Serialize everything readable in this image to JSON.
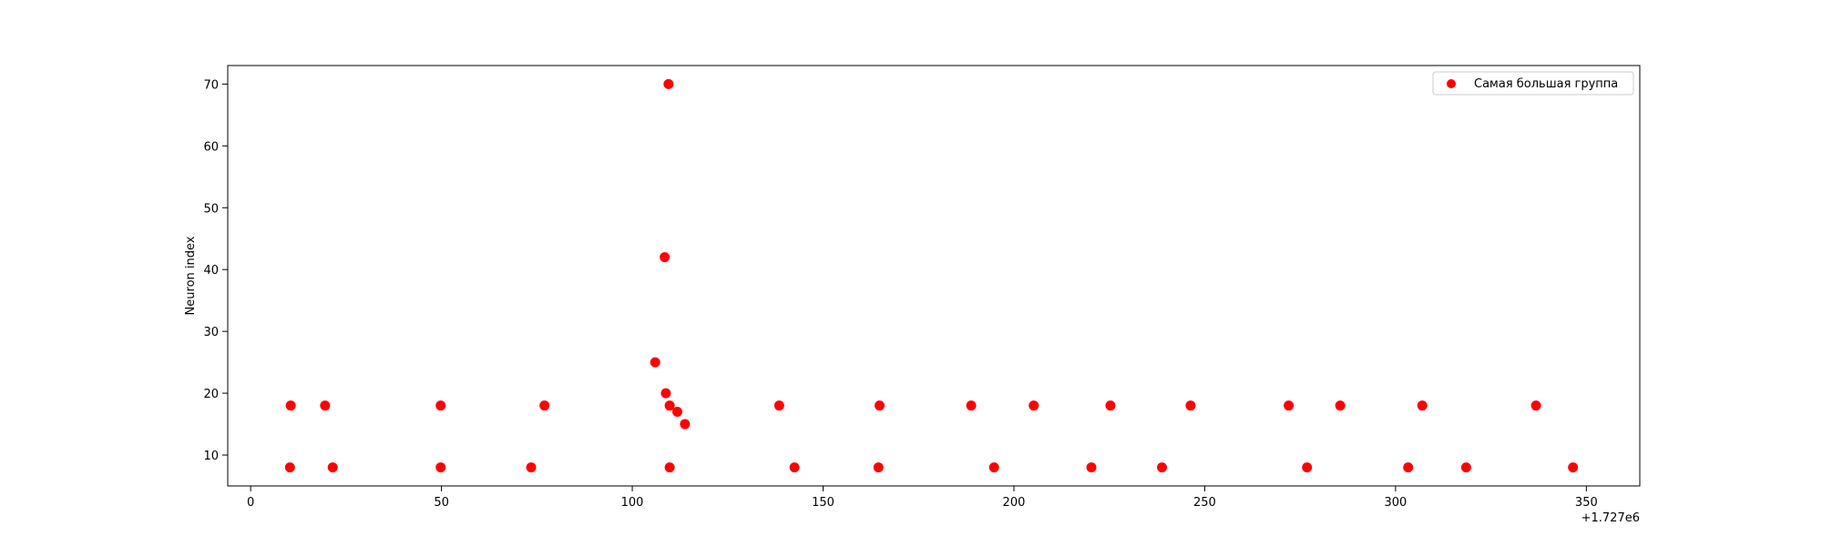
{
  "chart_data": {
    "type": "scatter",
    "title": "",
    "xlabel": "",
    "ylabel": "Neuron index",
    "x_offset_label": "+1.727e6",
    "xlim": [
      -6,
      364
    ],
    "ylim": [
      5,
      73
    ],
    "xticks": [
      0,
      50,
      100,
      150,
      200,
      250,
      300,
      350
    ],
    "yticks": [
      10,
      20,
      30,
      40,
      50,
      60,
      70
    ],
    "grid": false,
    "legend_position": "top-right",
    "series": [
      {
        "name": "Самая большая группа",
        "color": "#ff0000",
        "points": [
          {
            "x": 10.5,
            "y": 18
          },
          {
            "x": 10.3,
            "y": 8
          },
          {
            "x": 19.5,
            "y": 18
          },
          {
            "x": 21.5,
            "y": 8
          },
          {
            "x": 49.8,
            "y": 18
          },
          {
            "x": 49.8,
            "y": 8
          },
          {
            "x": 73.5,
            "y": 8
          },
          {
            "x": 77.0,
            "y": 18
          },
          {
            "x": 106.0,
            "y": 25
          },
          {
            "x": 108.5,
            "y": 42
          },
          {
            "x": 108.8,
            "y": 20
          },
          {
            "x": 109.5,
            "y": 70
          },
          {
            "x": 109.8,
            "y": 18
          },
          {
            "x": 109.8,
            "y": 8
          },
          {
            "x": 111.8,
            "y": 17
          },
          {
            "x": 113.8,
            "y": 15
          },
          {
            "x": 138.5,
            "y": 18
          },
          {
            "x": 142.5,
            "y": 8
          },
          {
            "x": 164.8,
            "y": 18
          },
          {
            "x": 164.5,
            "y": 8
          },
          {
            "x": 188.8,
            "y": 18
          },
          {
            "x": 194.8,
            "y": 8
          },
          {
            "x": 205.2,
            "y": 18
          },
          {
            "x": 220.3,
            "y": 8
          },
          {
            "x": 225.3,
            "y": 18
          },
          {
            "x": 238.8,
            "y": 8
          },
          {
            "x": 246.3,
            "y": 18
          },
          {
            "x": 272.0,
            "y": 18
          },
          {
            "x": 276.8,
            "y": 8
          },
          {
            "x": 285.5,
            "y": 18
          },
          {
            "x": 303.3,
            "y": 8
          },
          {
            "x": 307.0,
            "y": 18
          },
          {
            "x": 318.5,
            "y": 8
          },
          {
            "x": 336.8,
            "y": 18
          },
          {
            "x": 346.5,
            "y": 8
          }
        ]
      }
    ]
  }
}
